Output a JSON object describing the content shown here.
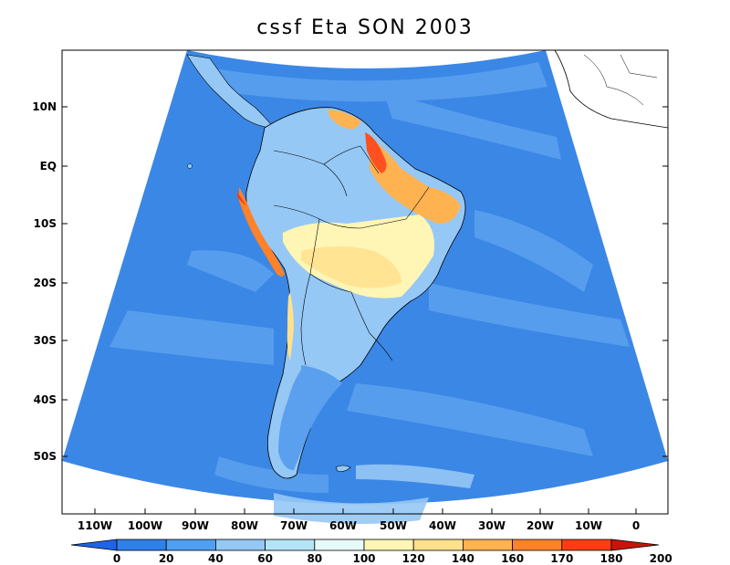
{
  "title": "cssf Eta SON 2003",
  "lat_labels": [
    "10N",
    "EQ",
    "10S",
    "20S",
    "30S",
    "40S",
    "50S"
  ],
  "lon_labels": [
    "110W",
    "100W",
    "90W",
    "80W",
    "70W",
    "60W",
    "50W",
    "40W",
    "30W",
    "20W",
    "10W",
    "0"
  ],
  "colorbar": {
    "labels": [
      "0",
      "20",
      "40",
      "60",
      "80",
      "100",
      "120",
      "140",
      "160",
      "170",
      "180",
      "200"
    ],
    "colors": [
      "#1e64e6",
      "#2f80e8",
      "#509ff0",
      "#96c8f5",
      "#b4e4f8",
      "#e6fafa",
      "#fff5b4",
      "#ffe08c",
      "#ffb250",
      "#ff8228",
      "#ff3c14",
      "#c8140a"
    ]
  },
  "colors": {
    "ocean": "#4a90e8",
    "domain_base": "#3b87e6",
    "boundary": "#000000"
  }
}
